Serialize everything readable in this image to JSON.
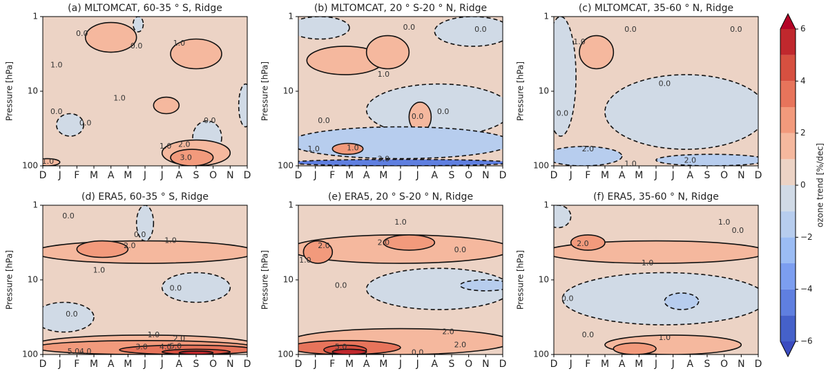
{
  "chart_data": [
    {
      "type": "contour",
      "title": "(a) MLTOMCAT, 60-35 ° S, Ridge",
      "ylabel": "Pressure [hPa]",
      "categories": [
        "D",
        "J",
        "F",
        "M",
        "A",
        "M",
        "J",
        "J",
        "A",
        "S",
        "O",
        "N",
        "D"
      ],
      "xlim": [
        0,
        12
      ],
      "ylim": [
        100,
        1
      ],
      "yticks": [
        1,
        10,
        100
      ],
      "log_y": true,
      "base_level": 0.5,
      "regions": [
        {
          "level": 1.5,
          "x": [
            2.5,
            5.5
          ],
          "y": [
            1.2,
            3
          ]
        },
        {
          "level": 1.5,
          "x": [
            7.5,
            10.5
          ],
          "y": [
            2,
            5
          ]
        },
        {
          "level": 1.5,
          "x": [
            6.5,
            8
          ],
          "y": [
            12,
            20
          ]
        },
        {
          "level": -0.5,
          "x": [
            5.3,
            5.9
          ],
          "y": [
            1,
            1.6
          ]
        },
        {
          "level": -0.5,
          "x": [
            0.8,
            2.4
          ],
          "y": [
            20,
            40
          ]
        },
        {
          "level": -0.5,
          "x": [
            8.8,
            10.5
          ],
          "y": [
            25,
            70
          ]
        },
        {
          "level": -0.5,
          "x": [
            11.5,
            12.3
          ],
          "y": [
            8,
            30
          ]
        },
        {
          "level": 1.5,
          "x": [
            7,
            11
          ],
          "y": [
            45,
            100
          ]
        },
        {
          "level": 2.5,
          "x": [
            7.5,
            10
          ],
          "y": [
            60,
            100
          ]
        },
        {
          "level": 1.5,
          "x": [
            -0.5,
            1
          ],
          "y": [
            80,
            100
          ]
        }
      ],
      "contour_labels": [
        {
          "value": 0,
          "label": "0.0",
          "x": 2.3,
          "y": 1.7
        },
        {
          "value": 0,
          "label": "0.0",
          "x": 5.5,
          "y": 2.5
        },
        {
          "value": 1,
          "label": "1.0",
          "x": 8,
          "y": 2.3
        },
        {
          "value": 1,
          "label": "1.0",
          "x": 0.8,
          "y": 4.5
        },
        {
          "value": 1,
          "label": "1.0",
          "x": 4.5,
          "y": 12.5
        },
        {
          "value": 0,
          "label": "0.0",
          "x": 0.8,
          "y": 19
        },
        {
          "value": 0,
          "label": "0.0",
          "x": 2.5,
          "y": 27
        },
        {
          "value": 0,
          "label": "0.0",
          "x": 9.8,
          "y": 25
        },
        {
          "value": 1,
          "label": "1.0",
          "x": 7.2,
          "y": 55
        },
        {
          "value": 2,
          "label": "2.0",
          "x": 8.3,
          "y": 52
        },
        {
          "value": 3,
          "label": "3.0",
          "x": 8.4,
          "y": 78
        },
        {
          "value": 1,
          "label": "1.0",
          "x": 0.3,
          "y": 88
        }
      ]
    },
    {
      "type": "contour",
      "title": "(b) MLTOMCAT, 20 ° S-20 ° N, Ridge",
      "ylabel": "Pressure [hPa]",
      "categories": [
        "D",
        "J",
        "F",
        "M",
        "A",
        "M",
        "J",
        "J",
        "A",
        "S",
        "O",
        "N",
        "D"
      ],
      "xlim": [
        0,
        12
      ],
      "ylim": [
        100,
        1
      ],
      "yticks": [
        1,
        10,
        100
      ],
      "log_y": true,
      "base_level": 0.5,
      "regions": [
        {
          "level": 1.5,
          "x": [
            0.5,
            5
          ],
          "y": [
            2.5,
            6
          ]
        },
        {
          "level": 1.5,
          "x": [
            4,
            6.5
          ],
          "y": [
            1.8,
            5
          ]
        },
        {
          "level": -0.5,
          "x": [
            4,
            12.5
          ],
          "y": [
            8,
            40
          ]
        },
        {
          "level": -0.5,
          "x": [
            -0.5,
            3
          ],
          "y": [
            1,
            2
          ]
        },
        {
          "level": -0.5,
          "x": [
            8,
            12.5
          ],
          "y": [
            1,
            2.5
          ]
        },
        {
          "level": 1.5,
          "x": [
            6.5,
            7.8
          ],
          "y": [
            14,
            35
          ]
        },
        {
          "level": -1.5,
          "x": [
            -0.5,
            12.5
          ],
          "y": [
            30,
            80
          ]
        },
        {
          "level": 2.5,
          "x": [
            2,
            3.8
          ],
          "y": [
            50,
            70
          ]
        },
        {
          "level": -4.5,
          "x": [
            -0.5,
            12.5
          ],
          "y": [
            82,
            100
          ]
        }
      ],
      "contour_labels": [
        {
          "value": 0,
          "label": "0.0",
          "x": 6.5,
          "y": 1.4
        },
        {
          "value": 1,
          "label": "1.0",
          "x": 5,
          "y": 6
        },
        {
          "value": 0,
          "label": "0.0",
          "x": 10.7,
          "y": 1.5
        },
        {
          "value": 0,
          "label": "0.0",
          "x": 1.5,
          "y": 25
        },
        {
          "value": 0,
          "label": "0.0",
          "x": 7,
          "y": 22
        },
        {
          "value": 0,
          "label": "0.0",
          "x": 8.5,
          "y": 19
        },
        {
          "value": 1,
          "label": "1.0",
          "x": 0.9,
          "y": 60
        },
        {
          "value": 1,
          "label": "1.0",
          "x": 3.2,
          "y": 58
        },
        {
          "value": 3,
          "label": "3.0",
          "x": 5,
          "y": 82
        }
      ]
    },
    {
      "type": "contour",
      "title": "(c) MLTOMCAT, 35-60 ° N, Ridge",
      "ylabel": "Pressure [hPa]",
      "categories": [
        "D",
        "J",
        "F",
        "M",
        "A",
        "M",
        "J",
        "J",
        "A",
        "S",
        "O",
        "N",
        "D"
      ],
      "xlim": [
        0,
        12
      ],
      "ylim": [
        100,
        1
      ],
      "yticks": [
        1,
        10,
        100
      ],
      "log_y": true,
      "base_level": 0.5,
      "regions": [
        {
          "level": 1.5,
          "x": [
            1.5,
            3.5
          ],
          "y": [
            1.8,
            5
          ]
        },
        {
          "level": -0.5,
          "x": [
            3,
            12.5
          ],
          "y": [
            6,
            60
          ]
        },
        {
          "level": -0.5,
          "x": [
            -0.5,
            1.3
          ],
          "y": [
            1,
            40
          ]
        },
        {
          "level": -1.5,
          "x": [
            -0.5,
            4
          ],
          "y": [
            55,
            100
          ]
        },
        {
          "level": -1.5,
          "x": [
            6,
            12.5
          ],
          "y": [
            70,
            100
          ]
        }
      ],
      "contour_labels": [
        {
          "value": 1,
          "label": "1.0",
          "x": 1.5,
          "y": 2.2
        },
        {
          "value": 0,
          "label": "0.0",
          "x": 4.5,
          "y": 1.5
        },
        {
          "value": 0,
          "label": "0.0",
          "x": 10.7,
          "y": 1.5
        },
        {
          "value": 0,
          "label": "0.0",
          "x": 6.5,
          "y": 8
        },
        {
          "value": 0,
          "label": "0.0",
          "x": 0.5,
          "y": 20
        },
        {
          "value": -2,
          "label": "2.0",
          "x": 2,
          "y": 60
        },
        {
          "value": -1,
          "label": "1.0",
          "x": 4.5,
          "y": 95
        },
        {
          "value": -2,
          "label": "2.0",
          "x": 8,
          "y": 85
        }
      ]
    },
    {
      "type": "contour",
      "title": "(d) ERA5, 60-35 ° S, Ridge",
      "ylabel": "Pressure [hPa]",
      "categories": [
        "D",
        "J",
        "F",
        "M",
        "A",
        "M",
        "J",
        "J",
        "A",
        "S",
        "O",
        "N",
        "D"
      ],
      "xlim": [
        0,
        12
      ],
      "ylim": [
        100,
        1
      ],
      "yticks": [
        1,
        10,
        100
      ],
      "log_y": true,
      "base_level": 0.5,
      "regions": [
        {
          "level": 1.5,
          "x": [
            -0.5,
            12.5
          ],
          "y": [
            3,
            6
          ]
        },
        {
          "level": 2.5,
          "x": [
            2,
            5
          ],
          "y": [
            3,
            5
          ]
        },
        {
          "level": -0.5,
          "x": [
            5.5,
            6.5
          ],
          "y": [
            1,
            3
          ]
        },
        {
          "level": -0.5,
          "x": [
            -0.5,
            3
          ],
          "y": [
            20,
            50
          ]
        },
        {
          "level": -0.5,
          "x": [
            7,
            11
          ],
          "y": [
            8,
            20
          ]
        },
        {
          "level": 1.5,
          "x": [
            -0.5,
            12.5
          ],
          "y": [
            55,
            100
          ]
        },
        {
          "level": 2.5,
          "x": [
            -0.5,
            12.5
          ],
          "y": [
            65,
            100
          ]
        },
        {
          "level": 3.5,
          "x": [
            4.5,
            12.5
          ],
          "y": [
            75,
            100
          ]
        },
        {
          "level": 4.5,
          "x": [
            7,
            11
          ],
          "y": [
            85,
            100
          ]
        },
        {
          "level": 5.5,
          "x": [
            8,
            10
          ],
          "y": [
            90,
            100
          ]
        }
      ],
      "contour_labels": [
        {
          "value": 0,
          "label": "0.0",
          "x": 1.5,
          "y": 1.4
        },
        {
          "value": 0,
          "label": "0.0",
          "x": 5.7,
          "y": 2.5
        },
        {
          "value": 1,
          "label": "1.0",
          "x": 7.5,
          "y": 3
        },
        {
          "value": 2,
          "label": "2.0",
          "x": 5.1,
          "y": 3.5
        },
        {
          "value": 1,
          "label": "1.0",
          "x": 3.3,
          "y": 7.5
        },
        {
          "value": 0,
          "label": "0.0",
          "x": 7.8,
          "y": 13
        },
        {
          "value": 0,
          "label": "0.0",
          "x": 1.7,
          "y": 29
        },
        {
          "value": 1,
          "label": "1.0",
          "x": 6.5,
          "y": 55
        },
        {
          "value": 2,
          "label": "2.0",
          "x": 8,
          "y": 62
        },
        {
          "value": 3,
          "label": "3.0",
          "x": 5.8,
          "y": 80
        },
        {
          "value": 4,
          "label": "4.0",
          "x": 7.2,
          "y": 80
        },
        {
          "value": 5,
          "label": "5.0",
          "x": 7.8,
          "y": 78
        },
        {
          "value": 4,
          "label": "4.0",
          "x": 2.5,
          "y": 92
        },
        {
          "value": 5,
          "label": "5.0",
          "x": 1.8,
          "y": 92
        }
      ]
    },
    {
      "type": "contour",
      "title": "(e) ERA5, 20 ° S-20 ° N, Ridge",
      "ylabel": "Pressure [hPa]",
      "categories": [
        "D",
        "J",
        "F",
        "M",
        "A",
        "M",
        "J",
        "J",
        "A",
        "S",
        "O",
        "N",
        "D"
      ],
      "xlim": [
        0,
        12
      ],
      "ylim": [
        100,
        1
      ],
      "yticks": [
        1,
        10,
        100
      ],
      "log_y": true,
      "base_level": 0.5,
      "regions": [
        {
          "level": 1.5,
          "x": [
            -0.5,
            12.5
          ],
          "y": [
            2.5,
            6
          ]
        },
        {
          "level": 2.5,
          "x": [
            0.3,
            2
          ],
          "y": [
            3,
            6
          ]
        },
        {
          "level": 2.5,
          "x": [
            5,
            8
          ],
          "y": [
            2.5,
            4
          ]
        },
        {
          "level": -0.5,
          "x": [
            4,
            12.5
          ],
          "y": [
            7,
            25
          ]
        },
        {
          "level": -1.5,
          "x": [
            9.5,
            12.5
          ],
          "y": [
            10,
            14
          ]
        },
        {
          "level": 1.5,
          "x": [
            -0.5,
            12.5
          ],
          "y": [
            45,
            100
          ]
        },
        {
          "level": 3.5,
          "x": [
            -0.5,
            6
          ],
          "y": [
            65,
            100
          ]
        },
        {
          "level": 4.5,
          "x": [
            1.5,
            4
          ],
          "y": [
            75,
            100
          ]
        },
        {
          "level": 5.5,
          "x": [
            2,
            4
          ],
          "y": [
            85,
            100
          ]
        }
      ],
      "contour_labels": [
        {
          "value": 1,
          "label": "1.0",
          "x": 6,
          "y": 1.7
        },
        {
          "value": 2,
          "label": "2.0",
          "x": 5,
          "y": 3.2
        },
        {
          "value": 2,
          "label": "2.0",
          "x": 1.5,
          "y": 3.5
        },
        {
          "value": 1,
          "label": "1.0",
          "x": 0.4,
          "y": 5.5
        },
        {
          "value": 0,
          "label": "0.0",
          "x": 2.5,
          "y": 12
        },
        {
          "value": 0,
          "label": "0.0",
          "x": 9.5,
          "y": 4
        },
        {
          "value": 2,
          "label": "2.0",
          "x": 8.8,
          "y": 50
        },
        {
          "value": 5,
          "label": "5.0",
          "x": 2.5,
          "y": 80
        },
        {
          "value": 2,
          "label": "2.0",
          "x": 9.5,
          "y": 75
        },
        {
          "value": 0,
          "label": "0.0",
          "x": 7,
          "y": 95
        }
      ]
    },
    {
      "type": "contour",
      "title": "(f) ERA5, 35-60 ° N, Ridge",
      "ylabel": "Pressure [hPa]",
      "categories": [
        "D",
        "J",
        "F",
        "M",
        "A",
        "M",
        "J",
        "J",
        "A",
        "S",
        "O",
        "N",
        "D"
      ],
      "xlim": [
        0,
        12
      ],
      "ylim": [
        100,
        1
      ],
      "yticks": [
        1,
        10,
        100
      ],
      "log_y": true,
      "base_level": 0.5,
      "regions": [
        {
          "level": 1.5,
          "x": [
            -0.5,
            12.5
          ],
          "y": [
            3,
            6
          ]
        },
        {
          "level": 2.5,
          "x": [
            1,
            3
          ],
          "y": [
            2.5,
            4
          ]
        },
        {
          "level": -0.5,
          "x": [
            0.5,
            12.5
          ],
          "y": [
            8,
            40
          ]
        },
        {
          "level": -1.5,
          "x": [
            6.5,
            8.5
          ],
          "y": [
            15,
            25
          ]
        },
        {
          "level": 1.5,
          "x": [
            3,
            11
          ],
          "y": [
            55,
            100
          ]
        },
        {
          "level": 2.5,
          "x": [
            3.5,
            6
          ],
          "y": [
            70,
            100
          ]
        },
        {
          "level": -0.5,
          "x": [
            -0.5,
            1
          ],
          "y": [
            1,
            2
          ]
        }
      ],
      "contour_labels": [
        {
          "value": 2,
          "label": "2.0",
          "x": 1.7,
          "y": 3.3
        },
        {
          "value": 1,
          "label": "1.0",
          "x": 5.5,
          "y": 6
        },
        {
          "value": 1,
          "label": "1.0",
          "x": 10,
          "y": 1.7
        },
        {
          "value": 0,
          "label": "0.0",
          "x": 10.8,
          "y": 2.2
        },
        {
          "value": 0,
          "label": "0.0",
          "x": 0.8,
          "y": 18
        },
        {
          "value": 0,
          "label": "0.0",
          "x": 2,
          "y": 55
        },
        {
          "value": 1,
          "label": "1.0",
          "x": 6.5,
          "y": 60
        }
      ]
    },
    {
      "type": "colorbar",
      "label": "ozone trend [%/dec]",
      "ylim": [
        -6,
        6
      ],
      "levels": [
        -6,
        -5,
        -4,
        -3,
        -2,
        -1,
        0,
        1,
        2,
        3,
        4,
        5,
        6
      ],
      "colors": [
        "#4561ca",
        "#5f7fe0",
        "#7c9ef0",
        "#9bbcf4",
        "#b7cdee",
        "#d0dae6",
        "#ecd3c5",
        "#f5b89e",
        "#f29a7c",
        "#e7745b",
        "#d65040",
        "#c0282d"
      ],
      "extend_colors": [
        "#3b4cc0",
        "#b40426"
      ],
      "yticks": [
        {
          "value": -6,
          "label": "−6"
        },
        {
          "value": -4,
          "label": "−4"
        },
        {
          "value": -2,
          "label": "−2"
        },
        0,
        2,
        4,
        6
      ]
    }
  ]
}
